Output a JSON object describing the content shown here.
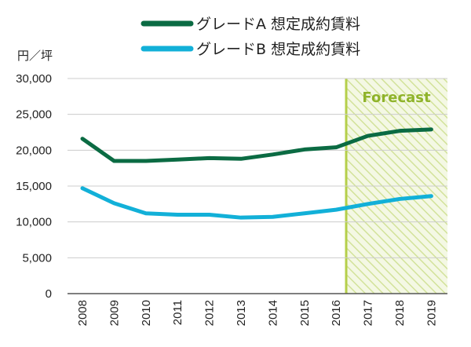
{
  "chart_data": {
    "type": "line",
    "unit_label": "円／坪",
    "x": [
      "2008",
      "2009",
      "2010",
      "2011",
      "2012",
      "2013",
      "2014",
      "2015",
      "2016",
      "2017",
      "2018",
      "2019"
    ],
    "ylim": [
      0,
      30000
    ],
    "yticks": [
      "0",
      "5,000",
      "10,000",
      "15,000",
      "20,000",
      "25,000",
      "30,000"
    ],
    "ytick_values": [
      0,
      5000,
      10000,
      15000,
      20000,
      25000,
      30000
    ],
    "grid": true,
    "legend_placement": "top",
    "forecast_label": "Forecast",
    "forecast_color": "#b5cf4a",
    "series": [
      {
        "name": "グレードA 想定成約賃料",
        "color": "#0b6b43",
        "values": [
          21600,
          18500,
          18500,
          18700,
          18900,
          18800,
          19400,
          20100,
          20400,
          22000,
          22700,
          22900
        ]
      },
      {
        "name": "グレードB 想定成約賃料",
        "color": "#12b0d8",
        "values": [
          14700,
          12600,
          11200,
          11000,
          11000,
          10600,
          10700,
          11200,
          11700,
          12500,
          13200,
          13600
        ]
      }
    ]
  }
}
